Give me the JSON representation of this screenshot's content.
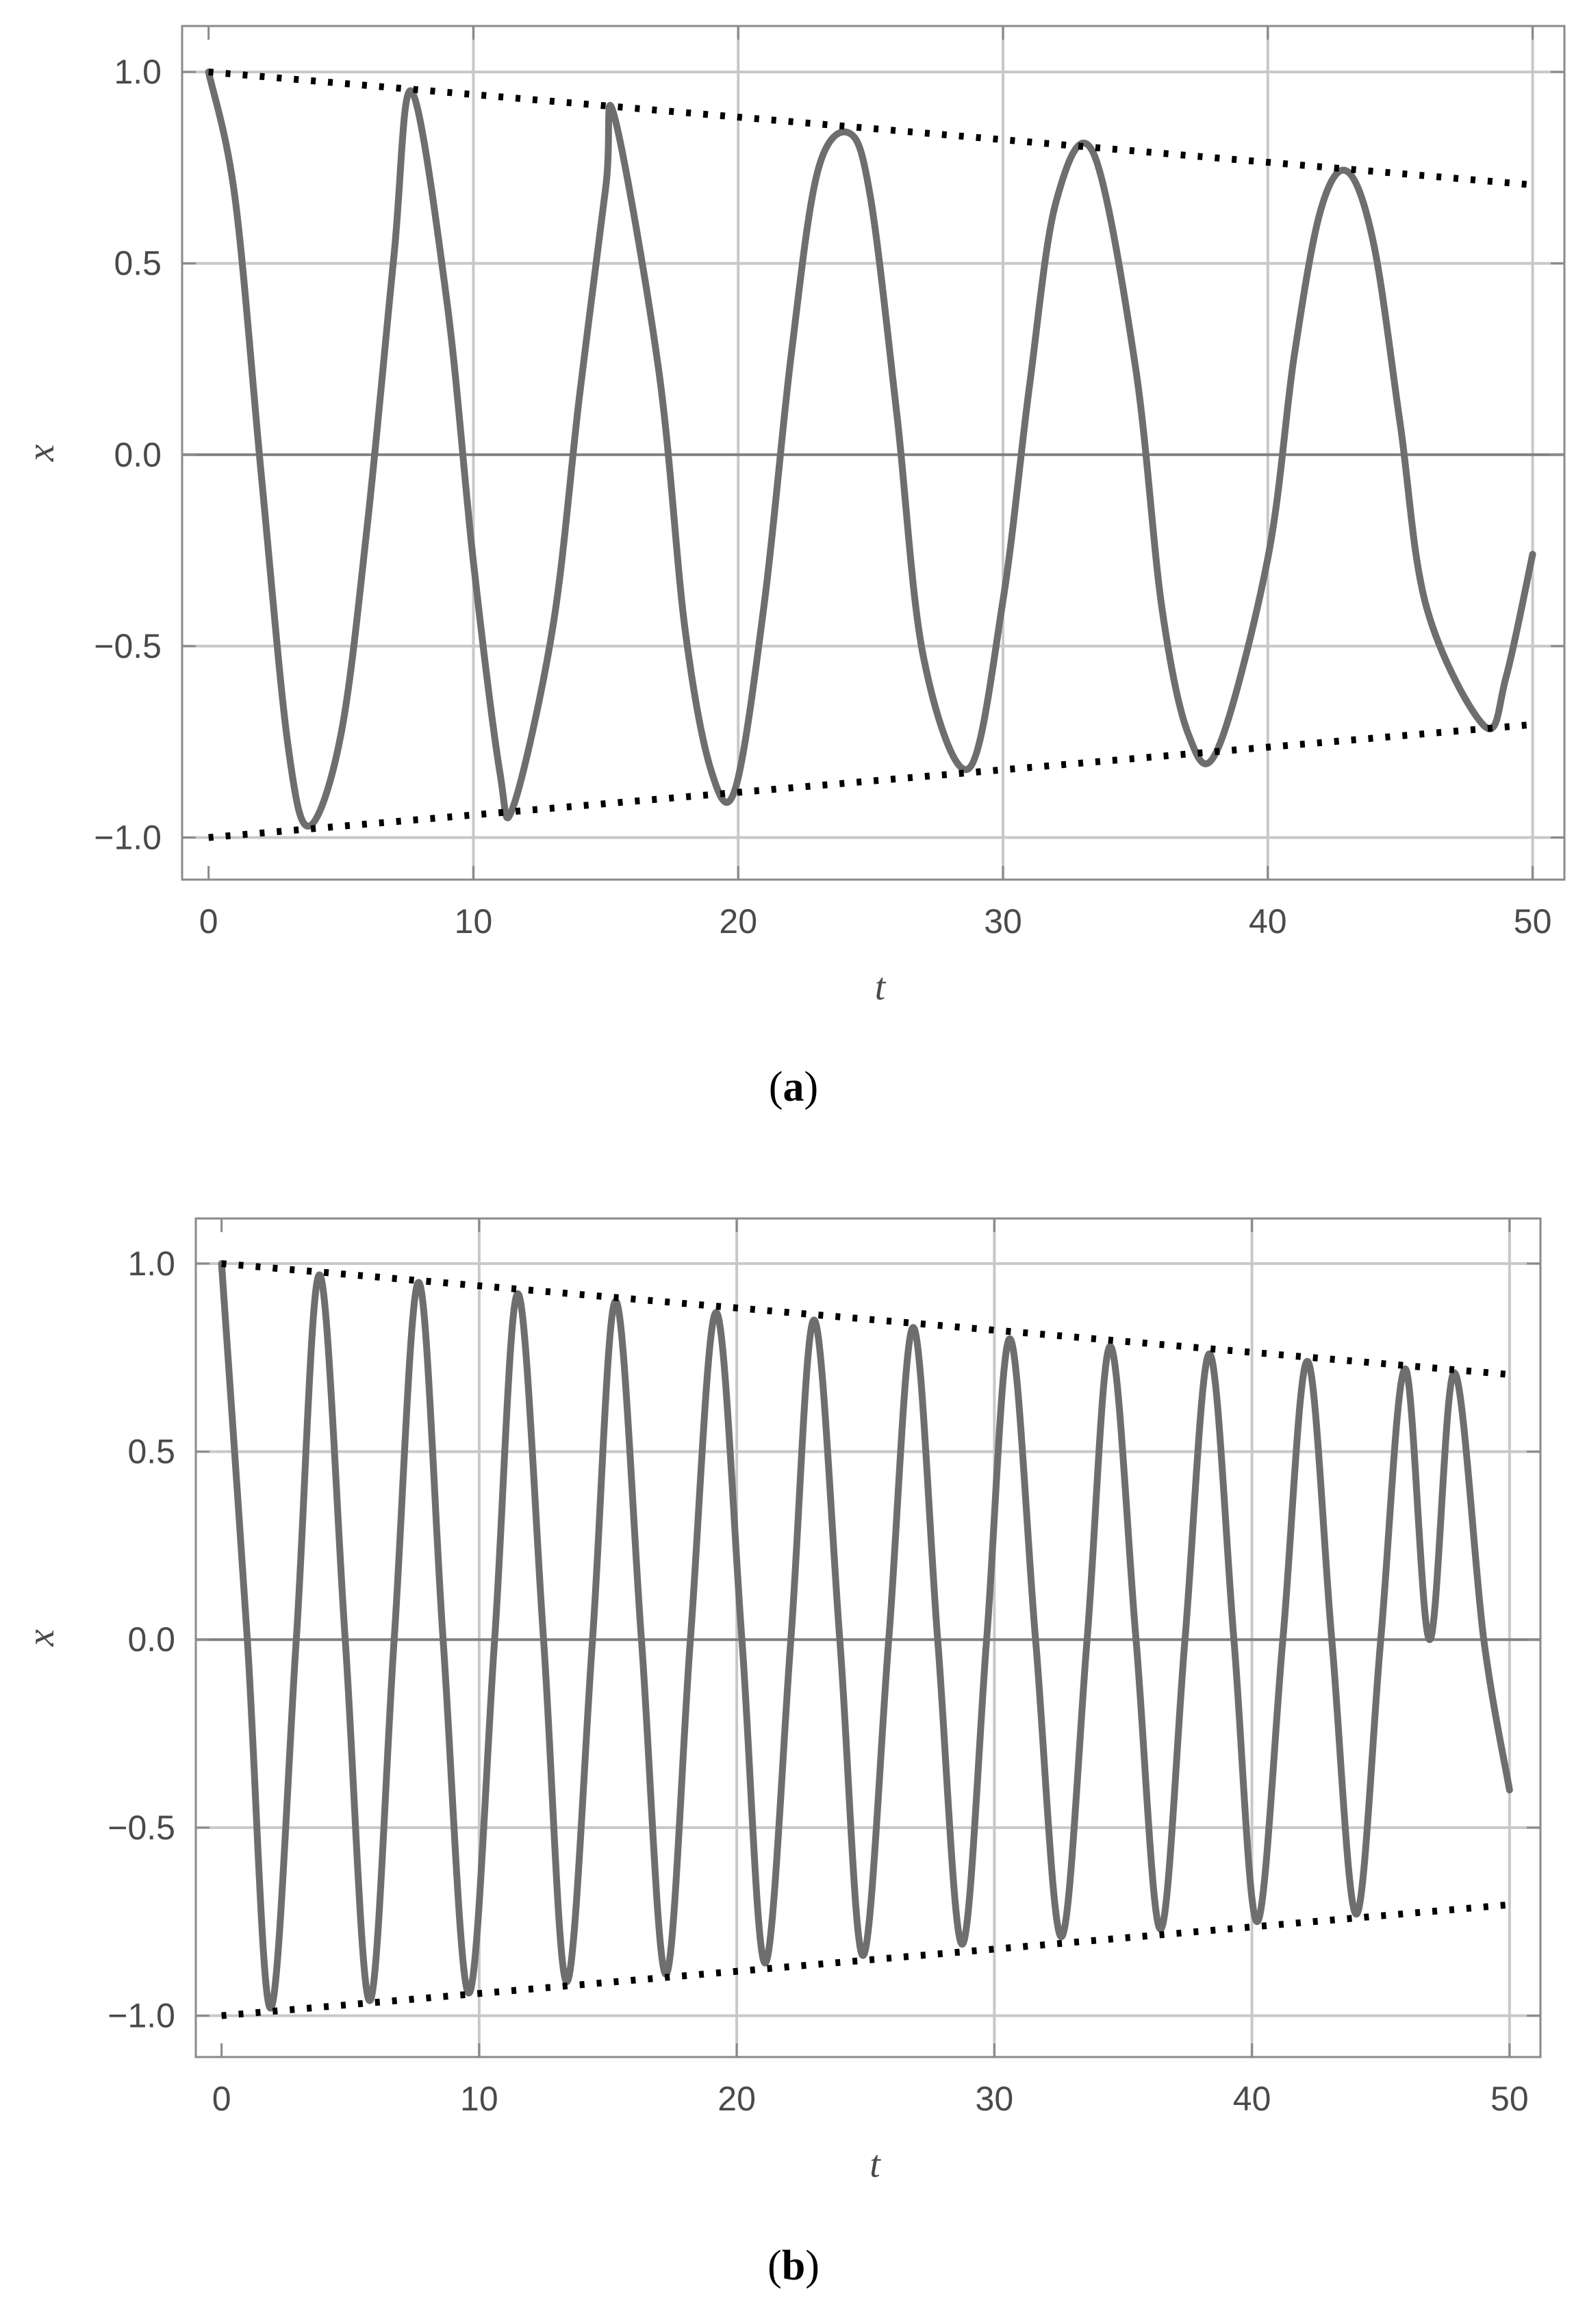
{
  "chart_data": [
    {
      "type": "line",
      "caption_open": "(",
      "caption_letter": "a",
      "caption_close": ")",
      "xlabel": "t",
      "ylabel": "x",
      "xlim": [
        -1,
        51.2
      ],
      "ylim": [
        -1.11,
        1.12
      ],
      "x_ticks": [
        0,
        10,
        20,
        30,
        40,
        50
      ],
      "x_tick_labels": [
        "0",
        "10",
        "20",
        "30",
        "40",
        "50"
      ],
      "y_ticks": [
        1.0,
        0.5,
        0.0,
        -0.5,
        -1.0
      ],
      "y_tick_labels": [
        "1.0",
        "0.5",
        "0.0",
        "−0.5",
        "−1.0"
      ],
      "grid": true,
      "series": [
        {
          "style": "solid",
          "color": "#6e6e6e",
          "description": "x(t) = exp(-0.007 t) cos(0.82 t), sampled",
          "x": [
            0,
            1,
            2,
            3,
            3.8,
            5,
            6,
            7,
            7.66,
            9,
            10,
            11,
            11.5,
            13,
            14,
            15,
            15.3,
            17,
            18,
            19,
            19.9,
            21,
            22,
            23,
            24.2,
            25,
            26,
            27,
            28.7,
            30,
            31,
            32,
            33.4,
            35,
            36,
            37,
            38.1,
            40,
            41,
            42,
            43.0,
            44,
            45,
            46,
            48.2,
            49,
            50
          ],
          "y": [
            1.0,
            0.67,
            -0.06,
            -0.76,
            -0.97,
            -0.73,
            -0.18,
            0.52,
            0.95,
            0.4,
            -0.28,
            -0.83,
            -0.92,
            -0.45,
            0.15,
            0.7,
            0.89,
            0.22,
            -0.46,
            -0.83,
            -0.87,
            -0.38,
            0.26,
            0.74,
            0.84,
            0.67,
            0.1,
            -0.53,
            -0.82,
            -0.38,
            0.18,
            0.66,
            0.79,
            0.23,
            -0.4,
            -0.73,
            -0.77,
            -0.27,
            0.26,
            0.64,
            0.74,
            0.55,
            0.08,
            -0.4,
            -0.71,
            -0.58,
            -0.26
          ]
        },
        {
          "style": "dotted",
          "color": "#000000",
          "description": "upper envelope",
          "x": [
            0,
            50
          ],
          "y": [
            1.0,
            0.705
          ]
        },
        {
          "style": "dotted",
          "color": "#000000",
          "description": "lower envelope",
          "x": [
            0,
            50
          ],
          "y": [
            -1.0,
            -0.705
          ]
        }
      ]
    },
    {
      "type": "line",
      "caption_open": "(",
      "caption_letter": "b",
      "caption_close": ")",
      "xlabel": "t",
      "ylabel": "x",
      "xlim": [
        -1,
        51.2
      ],
      "ylim": [
        -1.11,
        1.12
      ],
      "x_ticks": [
        0,
        10,
        20,
        30,
        40,
        50
      ],
      "x_tick_labels": [
        "0",
        "10",
        "20",
        "30",
        "40",
        "50"
      ],
      "y_ticks": [
        1.0,
        0.5,
        0.0,
        -0.5,
        -1.0
      ],
      "y_tick_labels": [
        "1.0",
        "0.5",
        "0.0",
        "−0.5",
        "−1.0"
      ],
      "grid": true,
      "series": [
        {
          "style": "solid",
          "color": "#6e6e6e",
          "description": "x(t) = exp(-0.007 t) cos(1.64 t), sampled",
          "x": [
            0,
            1.0,
            1.9,
            2.9,
            3.8,
            4.8,
            5.75,
            6.7,
            7.65,
            8.6,
            9.6,
            10.6,
            11.5,
            12.5,
            13.4,
            14.4,
            15.3,
            16.3,
            17.25,
            18.2,
            19.2,
            20.2,
            21.1,
            22.1,
            23.0,
            24.0,
            24.9,
            25.9,
            26.85,
            27.8,
            28.75,
            29.7,
            30.6,
            31.6,
            32.6,
            33.6,
            34.5,
            35.5,
            36.45,
            37.4,
            38.35,
            39.3,
            40.2,
            41.2,
            42.15,
            43.1,
            44.05,
            45.0,
            45.95,
            46.9,
            47.85,
            49.0,
            50.0
          ],
          "y": [
            1.0,
            0.0,
            -0.98,
            0.0,
            0.97,
            0.0,
            -0.96,
            0.0,
            0.95,
            0.0,
            -0.94,
            0.0,
            0.92,
            0.0,
            -0.91,
            0.0,
            0.9,
            0.0,
            -0.89,
            0.0,
            0.87,
            0.0,
            -0.86,
            0.0,
            0.85,
            0.0,
            -0.84,
            0.0,
            0.83,
            0.0,
            -0.81,
            0.0,
            0.8,
            0.0,
            -0.79,
            0.0,
            0.78,
            0.0,
            -0.77,
            0.0,
            0.76,
            0.0,
            -0.75,
            0.0,
            0.74,
            0.0,
            -0.73,
            0.0,
            0.72,
            0.0,
            0.71,
            0.0,
            -0.4
          ]
        },
        {
          "style": "dotted",
          "color": "#000000",
          "description": "upper envelope",
          "x": [
            0,
            50
          ],
          "y": [
            1.0,
            0.705
          ]
        },
        {
          "style": "dotted",
          "color": "#000000",
          "description": "lower envelope",
          "x": [
            0,
            50
          ],
          "y": [
            -1.0,
            -0.705
          ]
        }
      ]
    }
  ]
}
